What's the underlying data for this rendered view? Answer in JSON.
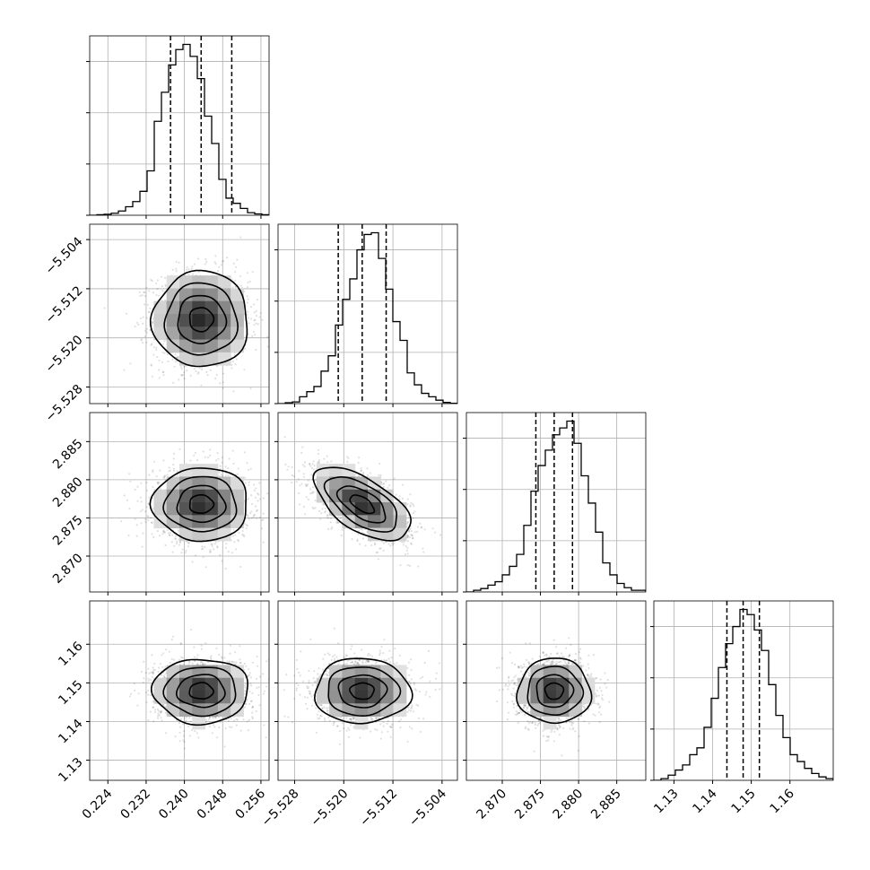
{
  "chart_data": {
    "type": "corner",
    "grid": true,
    "parameters": [
      {
        "range": [
          0.2202,
          0.2577
        ],
        "ticks": [
          0.224,
          0.232,
          0.24,
          0.248,
          0.256
        ],
        "tick_labels": [
          "0.224",
          "0.232",
          "0.240",
          "0.248",
          "0.256"
        ],
        "mean": 0.2435,
        "sigma": 0.005,
        "quantiles": [
          0.2371,
          0.2435,
          0.2499
        ],
        "hist_bins": [
          0,
          0.003,
          0.006,
          0.012,
          0.025,
          0.05,
          0.08,
          0.14,
          0.26,
          0.55,
          0.72,
          0.88,
          0.97,
          1.0,
          0.93,
          0.8,
          0.58,
          0.42,
          0.21,
          0.1,
          0.07,
          0.04,
          0.015,
          0.008,
          0.003
        ]
      },
      {
        "range": [
          -5.5307,
          -5.5015
        ],
        "ticks": [
          -5.528,
          -5.52,
          -5.512,
          -5.504
        ],
        "tick_labels": [
          "−5.528",
          "−5.520",
          "−5.512",
          "−5.504"
        ],
        "mean": -5.517,
        "sigma": 0.0039,
        "quantiles": [
          -5.5209,
          -5.517,
          -5.5131
        ],
        "hist_bins": [
          0,
          0.005,
          0.01,
          0.04,
          0.07,
          0.1,
          0.19,
          0.28,
          0.46,
          0.61,
          0.73,
          0.9,
          0.99,
          1.0,
          0.85,
          0.67,
          0.48,
          0.37,
          0.18,
          0.11,
          0.06,
          0.04,
          0.02,
          0.007,
          0.002
        ]
      },
      {
        "range": [
          2.8653,
          2.8888
        ],
        "ticks": [
          2.87,
          2.875,
          2.88,
          2.885
        ],
        "tick_labels": [
          "2.870",
          "2.875",
          "2.880",
          "2.885"
        ],
        "mean": 2.8768,
        "sigma": 0.0024,
        "quantiles": [
          2.8744,
          2.8768,
          2.8792
        ],
        "hist_bins": [
          0,
          0.01,
          0.02,
          0.04,
          0.06,
          0.1,
          0.15,
          0.22,
          0.39,
          0.59,
          0.74,
          0.83,
          0.92,
          0.96,
          1.0,
          0.87,
          0.68,
          0.52,
          0.35,
          0.17,
          0.1,
          0.05,
          0.025,
          0.01,
          0.01
        ]
      },
      {
        "range": [
          1.1248,
          1.1712
        ],
        "ticks": [
          1.13,
          1.14,
          1.15,
          1.16
        ],
        "tick_labels": [
          "1.13",
          "1.14",
          "1.15",
          "1.16"
        ],
        "mean": 1.1479,
        "sigma": 0.0042,
        "quantiles": [
          1.1437,
          1.1479,
          1.1521
        ],
        "hist_bins": [
          0,
          0.01,
          0.03,
          0.06,
          0.09,
          0.15,
          0.19,
          0.31,
          0.48,
          0.66,
          0.8,
          0.9,
          1.0,
          0.97,
          0.88,
          0.76,
          0.56,
          0.38,
          0.25,
          0.15,
          0.11,
          0.07,
          0.04,
          0.02,
          0.01
        ]
      }
    ],
    "correlations": [
      [
        1,
        0,
        0,
        0
      ],
      [
        0,
        1,
        0,
        0
      ],
      [
        0,
        -0.6,
        1,
        0
      ],
      [
        0,
        0,
        0,
        1
      ]
    ],
    "contour_levels_sigma": [
      0.5,
      1.0,
      1.5,
      2.0
    ]
  }
}
